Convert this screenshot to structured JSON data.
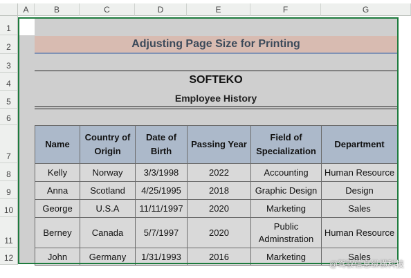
{
  "columns": [
    "A",
    "B",
    "C",
    "D",
    "E",
    "F",
    "G"
  ],
  "rows": [
    "1",
    "2",
    "3",
    "4",
    "5",
    "6",
    "7",
    "8",
    "9",
    "10",
    "11",
    "12"
  ],
  "sheet": {
    "title": "Adjusting Page Size for Printing",
    "company": "SOFTEKO",
    "subtitle": "Employee History"
  },
  "table": {
    "headers": [
      "Name",
      "Country of Origin",
      "Date of Birth",
      "Passing Year",
      "Field of Specialization",
      "Department"
    ],
    "rows": [
      [
        "Kelly",
        "Norway",
        "3/3/1998",
        "2022",
        "Accounting",
        "Human Resource"
      ],
      [
        "Anna",
        "Scotland",
        "4/25/1995",
        "2018",
        "Graphic Design",
        "Design"
      ],
      [
        "George",
        "U.S.A",
        "11/11/1997",
        "2020",
        "Marketing",
        "Sales"
      ],
      [
        "Berney",
        "Canada",
        "5/7/1997",
        "2020",
        "Public Adminstration",
        "Human Resource"
      ],
      [
        "John",
        "Germany",
        "1/31/1993",
        "2016",
        "Marketing",
        "Sales"
      ]
    ]
  },
  "watermark": "@驾驭信息纵横科技",
  "colors": {
    "title_band": "#d8bbb1",
    "table_header": "#acb9ca",
    "table_cell": "#d9d9d9",
    "selection_border": "#1d7b3d"
  }
}
